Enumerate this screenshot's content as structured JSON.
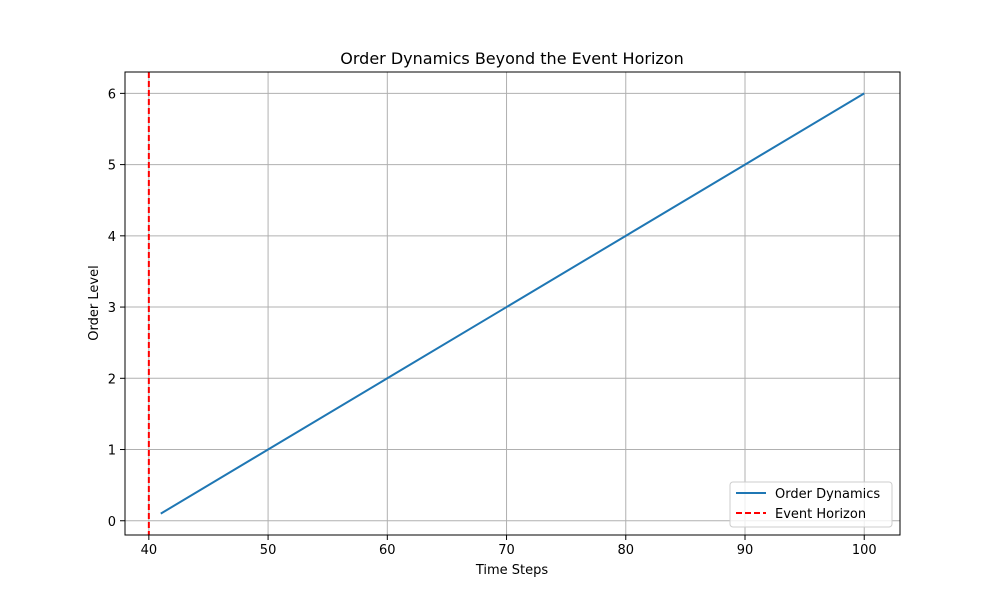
{
  "chart_data": {
    "type": "line",
    "title": "Order Dynamics Beyond the Event Horizon",
    "xlabel": "Time Steps",
    "ylabel": "Order Level",
    "xlim": [
      38,
      103
    ],
    "ylim": [
      -0.2,
      6.3
    ],
    "xticks": [
      40,
      50,
      60,
      70,
      80,
      90,
      100
    ],
    "yticks": [
      0,
      1,
      2,
      3,
      4,
      5,
      6
    ],
    "grid": true,
    "legend_position": "lower-right",
    "series": [
      {
        "name": "Order Dynamics",
        "color": "#1f77b4",
        "style": "solid",
        "x": [
          41,
          50,
          60,
          70,
          80,
          90,
          100
        ],
        "y": [
          0.1,
          1.0,
          2.0,
          3.0,
          4.0,
          5.0,
          6.0
        ]
      }
    ],
    "vlines": [
      {
        "name": "Event Horizon",
        "x": 40,
        "color": "#ff0000",
        "style": "dashed"
      }
    ]
  }
}
